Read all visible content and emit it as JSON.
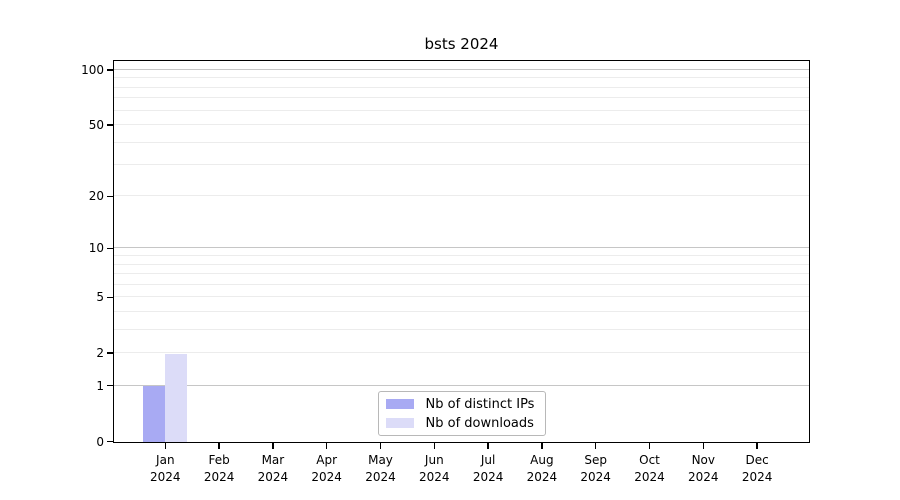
{
  "chart_data": {
    "type": "bar",
    "title": "bsts 2024",
    "categories": [
      "Jan",
      "Feb",
      "Mar",
      "Apr",
      "May",
      "Jun",
      "Jul",
      "Aug",
      "Sep",
      "Oct",
      "Nov",
      "Dec"
    ],
    "x_year_label": "2024",
    "series": [
      {
        "name": "Nb of distinct IPs",
        "color": "#a8aaf3",
        "values": [
          1,
          0,
          0,
          0,
          0,
          0,
          0,
          0,
          0,
          0,
          0,
          0
        ]
      },
      {
        "name": "Nb of downloads",
        "color": "#dcdcf8",
        "values": [
          2,
          0,
          0,
          0,
          0,
          0,
          0,
          0,
          0,
          0,
          0,
          0
        ]
      }
    ],
    "y_axis": {
      "scale": "log1p",
      "max": 100,
      "major_ticks": [
        0,
        1,
        2,
        5,
        10,
        20,
        50,
        100
      ],
      "minor_ticks": [
        3,
        4,
        6,
        7,
        8,
        9,
        30,
        40,
        60,
        70,
        80,
        90
      ]
    },
    "legend": {
      "position": "bottom-center",
      "entries": [
        "Nb of distinct IPs",
        "Nb of downloads"
      ]
    },
    "colors": {
      "decade_grid": "#c6c6c6",
      "minor_grid": "#ececec",
      "spine": "#000000"
    }
  }
}
